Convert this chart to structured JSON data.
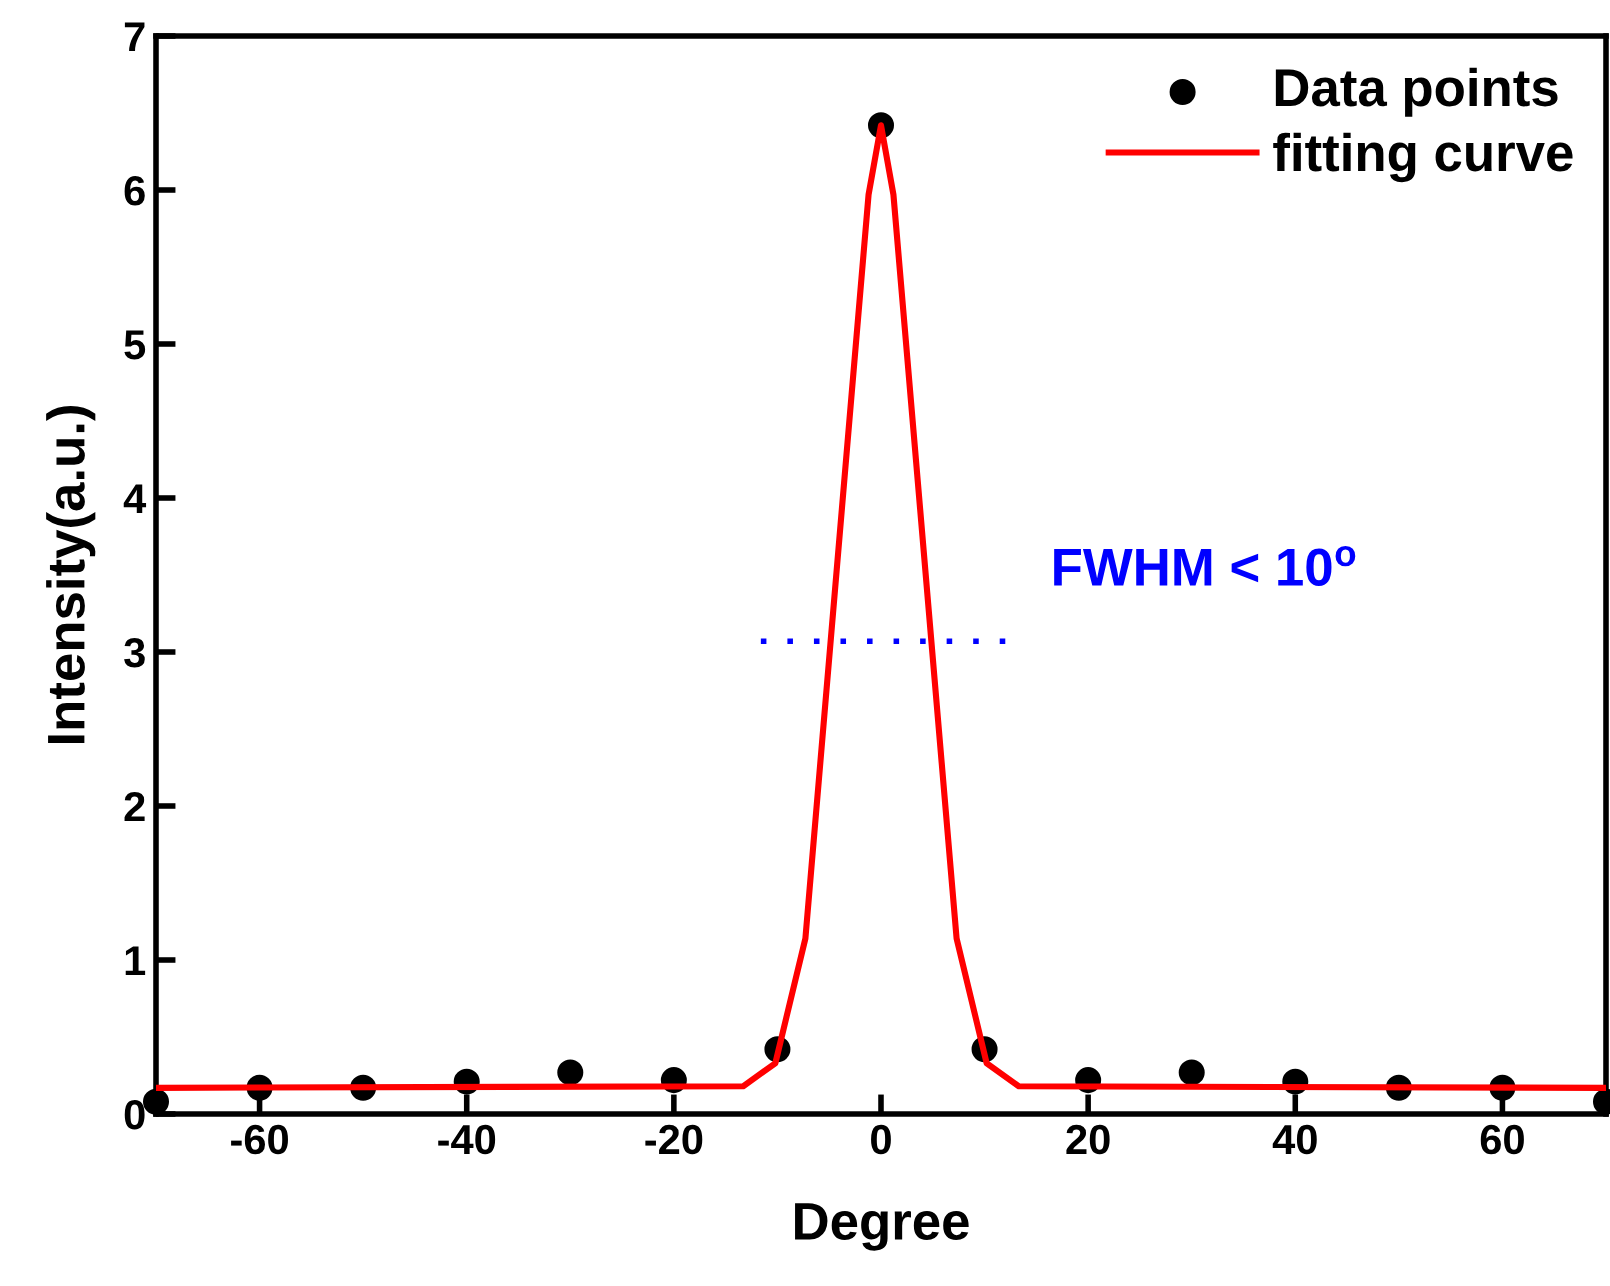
{
  "chart_data": {
    "type": "scatter",
    "xlabel": "Degree",
    "ylabel": "Intensity(a.u.)",
    "xlim": [
      -70,
      70
    ],
    "xticks": [
      -60,
      -40,
      -20,
      0,
      20,
      40,
      60
    ],
    "ylim": [
      0,
      7
    ],
    "yticks": [
      0,
      1,
      2,
      3,
      4,
      5,
      6,
      7
    ],
    "grid": false,
    "legend": "top right",
    "annotations": [
      "FWHM < 10$^{o}$"
    ],
    "series": [
      {
        "name": "Data points",
        "marker": "circle",
        "color": "#000000",
        "x": [
          -70,
          -60,
          -50,
          -40,
          -30,
          -20,
          -10,
          0,
          10,
          20,
          30,
          40,
          50,
          60,
          70
        ],
        "values": [
          0.08,
          0.17,
          0.17,
          0.21,
          0.27,
          0.22,
          0.42,
          6.42,
          0.42,
          0.22,
          0.27,
          0.21,
          0.17,
          0.17,
          0.08
        ]
      },
      {
        "name": "fitting curve",
        "type": "line",
        "line_style": "solid",
        "color": "#ff0000",
        "x": [
          -70,
          -13.3,
          -10.2,
          -7.3,
          -1.2,
          0,
          1.2,
          7.3,
          10.2,
          13.3,
          70
        ],
        "values": [
          0.17,
          0.18,
          0.33,
          1.14,
          5.97,
          6.42,
          5.97,
          1.14,
          0.33,
          0.18,
          0.17
        ]
      },
      {
        "type": "line",
        "line_style": "dotted",
        "color": "#0000ff",
        "x": [
          -11.6,
          12
        ],
        "values": [
          3.07,
          3.07
        ]
      }
    ]
  }
}
